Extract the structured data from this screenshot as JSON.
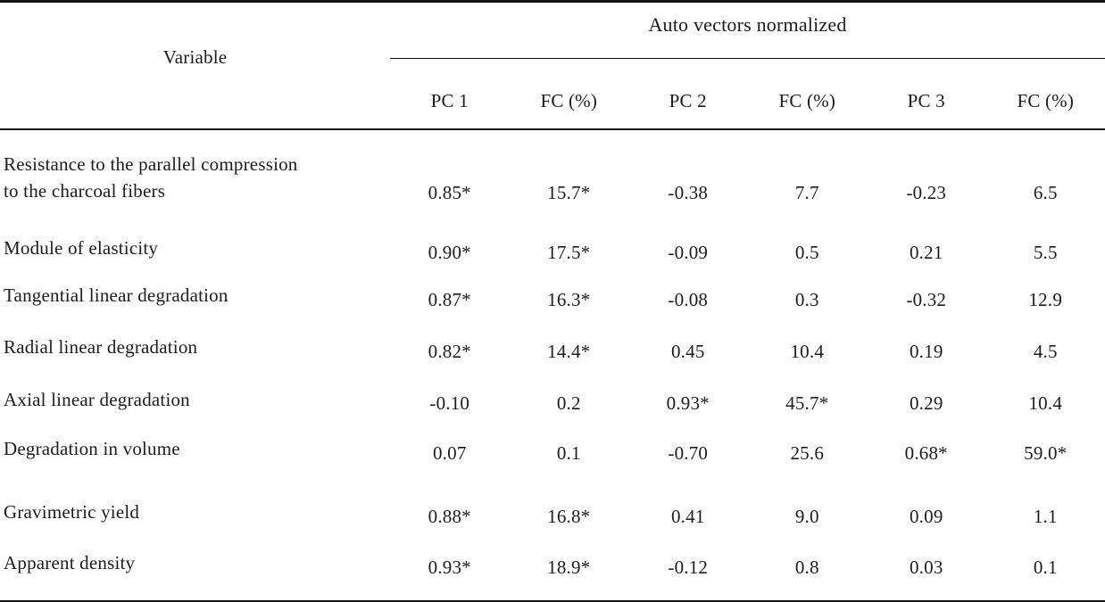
{
  "table": {
    "spanner_header": "Auto vectors normalized",
    "variable_header": "Variable",
    "columns": [
      "PC 1",
      "FC (%)",
      "PC 2",
      "FC (%)",
      "PC 3",
      "FC (%)"
    ],
    "rows": [
      {
        "variable": "Resistance to the parallel compression\nto the charcoal fibers",
        "values": [
          "0.85*",
          "15.7*",
          "-0.38",
          "7.7",
          "-0.23",
          "6.5"
        ]
      },
      {
        "variable": "Module of elasticity",
        "values": [
          "0.90*",
          "17.5*",
          "-0.09",
          "0.5",
          "0.21",
          "5.5"
        ]
      },
      {
        "variable": "Tangential linear degradation",
        "values": [
          "0.87*",
          "16.3*",
          "-0.08",
          "0.3",
          "-0.32",
          "12.9"
        ]
      },
      {
        "variable": "Radial linear degradation",
        "values": [
          "0.82*",
          "14.4*",
          "0.45",
          "10.4",
          "0.19",
          "4.5"
        ]
      },
      {
        "variable": "Axial linear degradation",
        "values": [
          "-0.10",
          "0.2",
          "0.93*",
          "45.7*",
          "0.29",
          "10.4"
        ]
      },
      {
        "variable": "Degradation in volume",
        "values": [
          "0.07",
          "0.1",
          "-0.70",
          "25.6",
          "0.68*",
          "59.0*"
        ]
      },
      {
        "variable": "Gravimetric yield",
        "values": [
          "0.88*",
          "16.8*",
          "0.41",
          "9.0",
          "0.09",
          "1.1"
        ]
      },
      {
        "variable": "Apparent density",
        "values": [
          "0.93*",
          "18.9*",
          "-0.12",
          "0.8",
          "0.03",
          "0.1"
        ]
      }
    ],
    "colors": {
      "text": "#1e1c1e",
      "rule": "#121212",
      "background": "#ffffff"
    }
  },
  "chart_data": {
    "type": "table",
    "title": "Auto vectors normalized",
    "columns": [
      "Variable",
      "PC 1",
      "FC (%)",
      "PC 2",
      "FC (%)",
      "PC 3",
      "FC (%)"
    ],
    "rows": [
      [
        "Resistance to the parallel compression to the charcoal fibers",
        "0.85*",
        "15.7*",
        "-0.38",
        "7.7",
        "-0.23",
        "6.5"
      ],
      [
        "Module of elasticity",
        "0.90*",
        "17.5*",
        "-0.09",
        "0.5",
        "0.21",
        "5.5"
      ],
      [
        "Tangential linear degradation",
        "0.87*",
        "16.3*",
        "-0.08",
        "0.3",
        "-0.32",
        "12.9"
      ],
      [
        "Radial linear degradation",
        "0.82*",
        "14.4*",
        "0.45",
        "10.4",
        "0.19",
        "4.5"
      ],
      [
        "Axial linear degradation",
        "-0.10",
        "0.2",
        "0.93*",
        "45.7*",
        "0.29",
        "10.4"
      ],
      [
        "Degradation in volume",
        "0.07",
        "0.1",
        "-0.70",
        "25.6",
        "0.68*",
        "59.0*"
      ],
      [
        "Gravimetric yield",
        "0.88*",
        "16.8*",
        "0.41",
        "9.0",
        "0.09",
        "1.1"
      ],
      [
        "Apparent density",
        "0.93*",
        "18.9*",
        "-0.12",
        "0.8",
        "0.03",
        "0.1"
      ]
    ]
  }
}
